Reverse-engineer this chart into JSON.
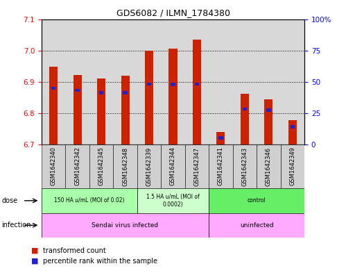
{
  "title": "GDS6082 / ILMN_1784380",
  "samples": [
    "GSM1642340",
    "GSM1642342",
    "GSM1642345",
    "GSM1642348",
    "GSM1642339",
    "GSM1642344",
    "GSM1642347",
    "GSM1642341",
    "GSM1642343",
    "GSM1642346",
    "GSM1642349"
  ],
  "red_values": [
    6.948,
    6.923,
    6.91,
    6.92,
    7.0,
    7.005,
    7.035,
    6.74,
    6.862,
    6.845,
    6.778
  ],
  "blue_values": [
    6.88,
    6.873,
    6.866,
    6.866,
    6.893,
    6.892,
    6.893,
    6.722,
    6.813,
    6.81,
    6.757
  ],
  "ymin": 6.7,
  "ymax": 7.1,
  "yticks": [
    6.7,
    6.8,
    6.9,
    7.0,
    7.1
  ],
  "right_yticks": [
    0,
    25,
    50,
    75,
    100
  ],
  "bar_color": "#cc2200",
  "blue_color": "#2222cc",
  "dose_groups": [
    {
      "label": "150 HA u/mL (MOI of 0.02)",
      "start": 0,
      "end": 4,
      "color": "#aaffaa"
    },
    {
      "label": "1.5 HA u/mL (MOI of\n0.0002)",
      "start": 4,
      "end": 7,
      "color": "#ccffcc"
    },
    {
      "label": "control",
      "start": 7,
      "end": 11,
      "color": "#66ee66"
    }
  ],
  "infection_groups": [
    {
      "label": "Sendai virus infected",
      "start": 0,
      "end": 7,
      "color": "#ffaaff"
    },
    {
      "label": "uninfected",
      "start": 7,
      "end": 11,
      "color": "#ffaaff"
    }
  ],
  "dose_label": "dose",
  "infection_label": "infection",
  "legend_red": "transformed count",
  "legend_blue": "percentile rank within the sample"
}
